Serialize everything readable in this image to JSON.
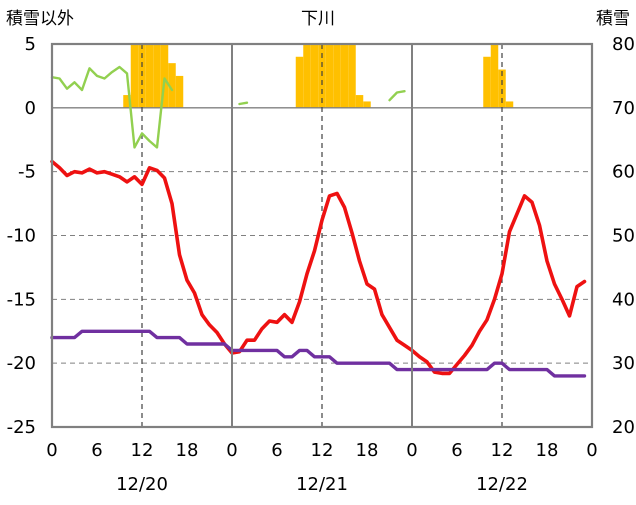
{
  "chart_data": {
    "type": "line",
    "title": "下川",
    "left_axis_label": "積雪以外",
    "right_axis_label": "積雪",
    "left_axis": {
      "range": [
        -25,
        5
      ],
      "ticks": [
        5,
        0,
        -5,
        -10,
        -15,
        -20,
        -25
      ]
    },
    "right_axis": {
      "range": [
        20,
        80
      ],
      "ticks": [
        80,
        70,
        60,
        50,
        40,
        30,
        20
      ]
    },
    "x_range_hours": [
      0,
      72
    ],
    "x_tick_labels": [
      "0",
      "6",
      "12",
      "18",
      "0",
      "6",
      "12",
      "18",
      "0",
      "6",
      "12",
      "18",
      "0"
    ],
    "x_tick_hours": [
      0,
      6,
      12,
      18,
      24,
      30,
      36,
      42,
      48,
      54,
      60,
      66,
      72
    ],
    "day_labels": [
      "12/20",
      "12/21",
      "12/22"
    ],
    "day_label_hours": [
      12,
      36,
      60
    ],
    "grid": "dashed horizontal; dashed vertical at 12:00",
    "colors": {
      "red": "#ee1111",
      "purple": "#7030a0",
      "green": "#92d050",
      "orange": "#ffc000",
      "frame": "#808080",
      "grid": "#808080"
    },
    "series": [
      {
        "axis": "left",
        "color": "#ee1111",
        "points": [
          [
            0,
            -4.2
          ],
          [
            1,
            -4.7
          ],
          [
            2,
            -5.3
          ],
          [
            3,
            -5
          ],
          [
            4,
            -5.1
          ],
          [
            5,
            -4.8
          ],
          [
            6,
            -5.1
          ],
          [
            7,
            -5
          ],
          [
            8,
            -5.2
          ],
          [
            9,
            -5.4
          ],
          [
            10,
            -5.8
          ],
          [
            11,
            -5.4
          ],
          [
            12,
            -6
          ],
          [
            13,
            -4.7
          ],
          [
            14,
            -4.9
          ],
          [
            15,
            -5.5
          ],
          [
            16,
            -7.5
          ],
          [
            17,
            -11.5
          ],
          [
            18,
            -13.5
          ],
          [
            19,
            -14.5
          ],
          [
            20,
            -16.2
          ],
          [
            21,
            -17
          ],
          [
            22,
            -17.6
          ],
          [
            23,
            -18.5
          ],
          [
            24,
            -19.2
          ],
          [
            25,
            -19.1
          ],
          [
            26,
            -18.2
          ],
          [
            27,
            -18.2
          ],
          [
            28,
            -17.3
          ],
          [
            29,
            -16.7
          ],
          [
            30,
            -16.8
          ],
          [
            31,
            -16.2
          ],
          [
            32,
            -16.8
          ],
          [
            33,
            -15.2
          ],
          [
            34,
            -13
          ],
          [
            35,
            -11.2
          ],
          [
            36,
            -8.8
          ],
          [
            37,
            -6.9
          ],
          [
            38,
            -6.7
          ],
          [
            39,
            -7.8
          ],
          [
            40,
            -9.8
          ],
          [
            41,
            -12
          ],
          [
            42,
            -13.8
          ],
          [
            43,
            -14.2
          ],
          [
            44,
            -16.2
          ],
          [
            45,
            -17.2
          ],
          [
            46,
            -18.2
          ],
          [
            47,
            -18.6
          ],
          [
            48,
            -19
          ],
          [
            49,
            -19.5
          ],
          [
            50,
            -19.9
          ],
          [
            51,
            -20.7
          ],
          [
            52,
            -20.8
          ],
          [
            53,
            -20.8
          ],
          [
            54,
            -20.1
          ],
          [
            55,
            -19.4
          ],
          [
            56,
            -18.6
          ],
          [
            57,
            -17.5
          ],
          [
            58,
            -16.6
          ],
          [
            59,
            -15
          ],
          [
            60,
            -13
          ],
          [
            61,
            -9.7
          ],
          [
            62,
            -8.3
          ],
          [
            63,
            -6.9
          ],
          [
            64,
            -7.4
          ],
          [
            65,
            -9.2
          ],
          [
            66,
            -12
          ],
          [
            67,
            -13.8
          ],
          [
            68,
            -15
          ],
          [
            69,
            -16.3
          ],
          [
            70,
            -14
          ],
          [
            71,
            -13.6
          ]
        ]
      },
      {
        "axis": "left",
        "color": "#7030a0",
        "points": [
          [
            0,
            -18
          ],
          [
            3,
            -18
          ],
          [
            4,
            -17.5
          ],
          [
            13,
            -17.5
          ],
          [
            14,
            -18
          ],
          [
            17,
            -18
          ],
          [
            18,
            -18.5
          ],
          [
            23,
            -18.5
          ],
          [
            24,
            -19
          ],
          [
            30,
            -19
          ],
          [
            31,
            -19.5
          ],
          [
            32,
            -19.5
          ],
          [
            33,
            -19
          ],
          [
            34,
            -19
          ],
          [
            35,
            -19.5
          ],
          [
            37,
            -19.5
          ],
          [
            38,
            -20
          ],
          [
            45,
            -20
          ],
          [
            46,
            -20.5
          ],
          [
            57,
            -20.5
          ],
          [
            58,
            -20.5
          ],
          [
            59,
            -20
          ],
          [
            60,
            -20
          ],
          [
            61,
            -20.5
          ],
          [
            66,
            -20.5
          ],
          [
            67,
            -21
          ],
          [
            71,
            -21
          ]
        ]
      },
      {
        "axis": "left",
        "color": "#92d050",
        "segments": [
          [
            [
              0,
              2.4
            ],
            [
              1,
              2.3
            ],
            [
              2,
              1.5
            ],
            [
              3,
              2
            ],
            [
              4,
              1.4
            ],
            [
              5,
              3.1
            ],
            [
              6,
              2.5
            ],
            [
              7,
              2.3
            ],
            [
              8,
              2.8
            ],
            [
              9,
              3.2
            ],
            [
              10,
              2.7
            ],
            [
              11,
              -3.1
            ],
            [
              12,
              -2
            ],
            [
              13,
              -2.6
            ],
            [
              14,
              -3.1
            ],
            [
              15,
              2.3
            ],
            [
              16,
              1.4
            ]
          ],
          [
            [
              25,
              0.3
            ],
            [
              26,
              0.4
            ]
          ],
          [
            [
              45,
              0.6
            ],
            [
              46,
              1.2
            ],
            [
              47,
              1.3
            ]
          ]
        ]
      }
    ],
    "bars": {
      "axis": "right",
      "color": "#ffc000",
      "points": [
        [
          10,
          72
        ],
        [
          11,
          80
        ],
        [
          12,
          80
        ],
        [
          13,
          80
        ],
        [
          14,
          80
        ],
        [
          15,
          80
        ],
        [
          16,
          77
        ],
        [
          17,
          75
        ],
        [
          33,
          78
        ],
        [
          34,
          80
        ],
        [
          35,
          80
        ],
        [
          36,
          80
        ],
        [
          37,
          80
        ],
        [
          38,
          80
        ],
        [
          39,
          80
        ],
        [
          40,
          80
        ],
        [
          41,
          72
        ],
        [
          42,
          71
        ],
        [
          58,
          78
        ],
        [
          59,
          80
        ],
        [
          60,
          76
        ],
        [
          61,
          71
        ]
      ]
    }
  }
}
